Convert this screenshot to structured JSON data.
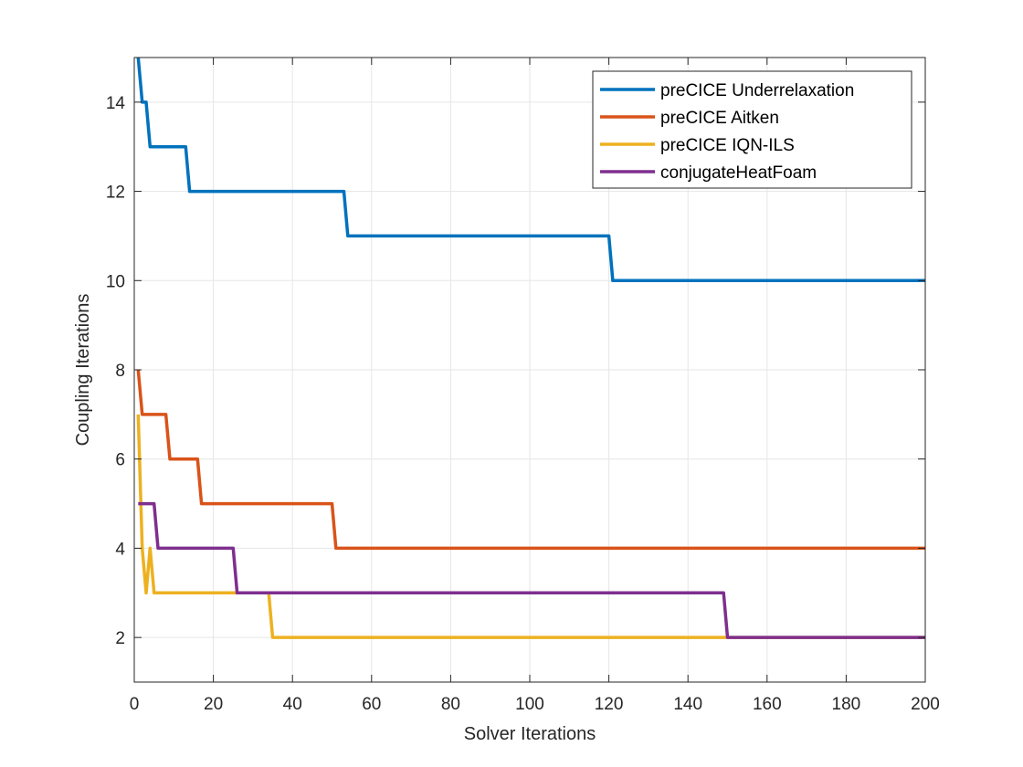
{
  "chart_data": {
    "type": "line",
    "title": "",
    "xlabel": "Solver Iterations",
    "ylabel": "Coupling Iterations",
    "xlim": [
      0,
      200
    ],
    "ylim": [
      1,
      15
    ],
    "xticks": [
      "0",
      "20",
      "40",
      "60",
      "80",
      "100",
      "120",
      "140",
      "160",
      "180",
      "200"
    ],
    "yticks": [
      "2",
      "4",
      "6",
      "8",
      "10",
      "12",
      "14"
    ],
    "grid": true,
    "legend_position": "top-right",
    "series": [
      {
        "name": "preCICE Underrelaxation",
        "color": "#0072BD",
        "x": [
          1,
          2,
          3,
          4,
          13,
          14,
          53,
          54,
          120,
          121,
          200
        ],
        "y": [
          15,
          14,
          14,
          13,
          13,
          12,
          12,
          11,
          11,
          10,
          10
        ]
      },
      {
        "name": "preCICE Aitken",
        "color": "#D95319",
        "x": [
          1,
          2,
          8,
          9,
          16,
          17,
          50,
          51,
          200
        ],
        "y": [
          8,
          7,
          7,
          6,
          6,
          5,
          5,
          4,
          4
        ]
      },
      {
        "name": "preCICE IQN-ILS",
        "color": "#EDB120",
        "x": [
          1,
          2,
          3,
          4,
          5,
          34,
          35,
          149,
          150,
          200
        ],
        "y": [
          7,
          4,
          3,
          4,
          3,
          3,
          2,
          2,
          2,
          2
        ]
      },
      {
        "name": "conjugateHeatFoam",
        "color": "#7E2F8E",
        "x": [
          1,
          5,
          6,
          25,
          26,
          149,
          150,
          200
        ],
        "y": [
          5,
          5,
          4,
          4,
          3,
          3,
          2,
          2
        ]
      }
    ]
  }
}
